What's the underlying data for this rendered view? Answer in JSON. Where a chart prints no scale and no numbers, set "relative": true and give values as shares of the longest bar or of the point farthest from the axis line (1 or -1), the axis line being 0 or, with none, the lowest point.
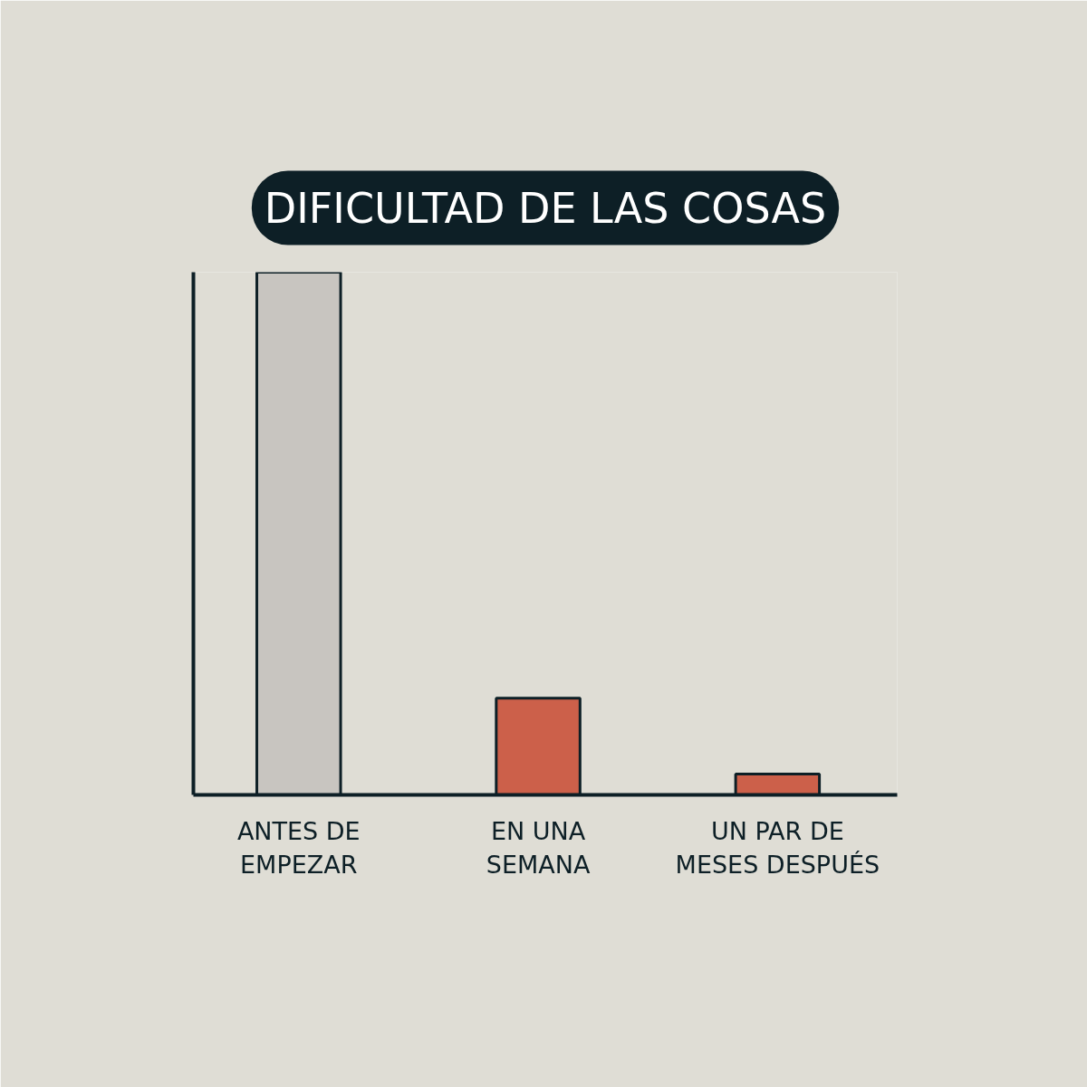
{
  "chart_data": {
    "type": "bar",
    "title": "DIFICULTAD DE LAS COSAS",
    "categories": [
      "ANTES DE\nEMPEZAR",
      "EN UNA\nSEMANA",
      "UN PAR DE\nMESES DESPUÉS"
    ],
    "values": [
      1,
      0.185,
      0.04
    ],
    "colors": [
      "#c8c5c0",
      "#cc604a",
      "#cc604a"
    ],
    "relative": true,
    "grid": false
  }
}
